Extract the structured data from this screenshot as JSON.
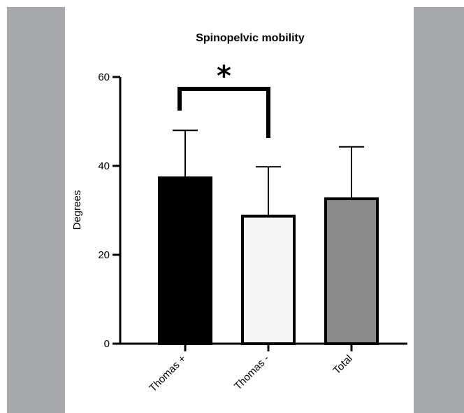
{
  "chart_data": {
    "type": "bar",
    "title": "Spinopelvic mobility",
    "xlabel": "",
    "ylabel": "Degrees",
    "ylim": [
      0,
      60
    ],
    "yticks": [
      0,
      20,
      40,
      60
    ],
    "grid": false,
    "legend": "none",
    "categories": [
      "Thomas +",
      "Thomas -",
      "Total"
    ],
    "values": [
      37.3,
      28.7,
      32.6
    ],
    "error": [
      10.7,
      11.1,
      11.7
    ],
    "bar_colors": [
      "#000000",
      "#f5f5f5",
      "#8a8a8a"
    ],
    "significance": {
      "between": [
        "Thomas +",
        "Thomas -"
      ],
      "mark": "*"
    }
  },
  "colors": {
    "side_panel": "#a7a8ab",
    "axis": "#000000"
  }
}
